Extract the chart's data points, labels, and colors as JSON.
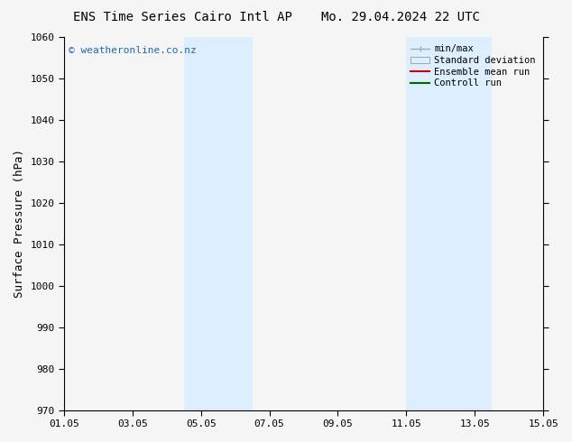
{
  "title_left": "ENS Time Series Cairo Intl AP",
  "title_right": "Mo. 29.04.2024 22 UTC",
  "ylabel": "Surface Pressure (hPa)",
  "ylim": [
    970,
    1060
  ],
  "yticks": [
    970,
    980,
    990,
    1000,
    1010,
    1020,
    1030,
    1040,
    1050,
    1060
  ],
  "xlim": [
    0,
    14
  ],
  "xtick_labels": [
    "01.05",
    "03.05",
    "05.05",
    "07.05",
    "09.05",
    "11.05",
    "13.05",
    "15.05"
  ],
  "xtick_positions": [
    0,
    2,
    4,
    6,
    8,
    10,
    12,
    14
  ],
  "shaded_bands": [
    {
      "start": 3.5,
      "end": 5.5
    },
    {
      "start": 10.0,
      "end": 12.5
    }
  ],
  "shaded_color": "#ddeeff",
  "watermark_text": "© weatheronline.co.nz",
  "watermark_color": "#1a6ab5",
  "legend_labels": [
    "min/max",
    "Standard deviation",
    "Ensemble mean run",
    "Controll run"
  ],
  "legend_colors_line": [
    "#aaaaaa",
    "#ccddee",
    "#cc0000",
    "#006600"
  ],
  "bg_color": "#f5f5f5",
  "plot_bg_color": "#f5f5f5",
  "title_fontsize": 10,
  "axis_label_fontsize": 9,
  "tick_fontsize": 8,
  "legend_fontsize": 7.5,
  "watermark_fontsize": 8
}
